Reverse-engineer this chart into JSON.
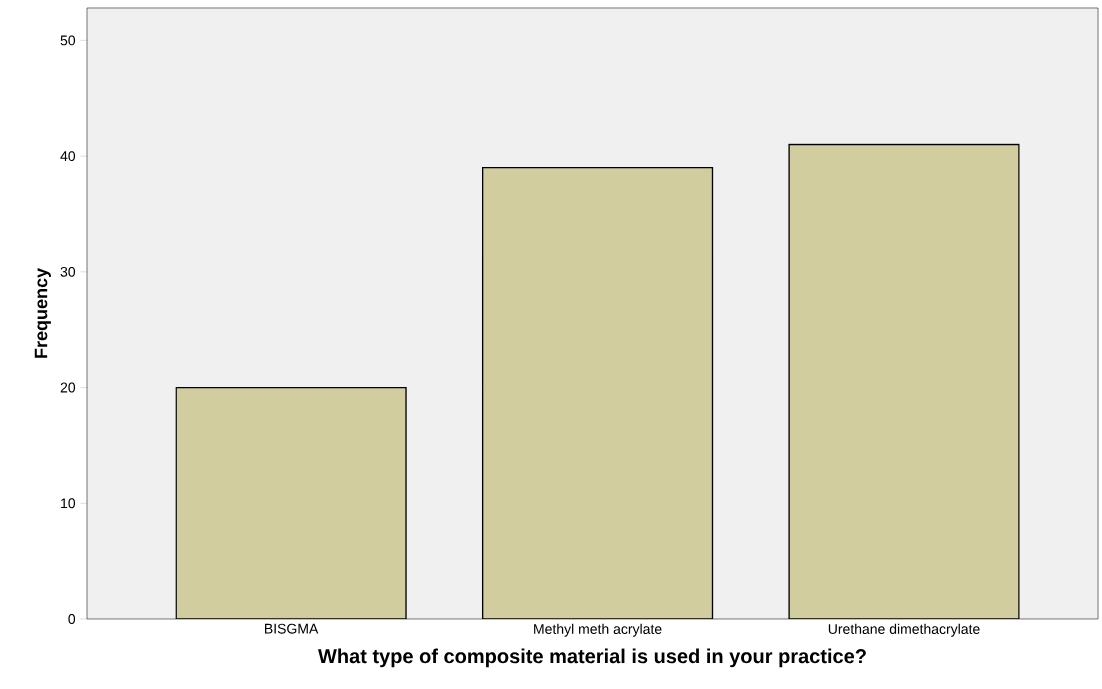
{
  "chart_data": {
    "type": "bar",
    "xlabel": "What type of composite material is used in your practice?",
    "ylabel": "Frequency",
    "categories": [
      "BISGMA",
      "Methyl meth acrylate",
      "Urethane dimethacrylate"
    ],
    "values": [
      20,
      39,
      41
    ],
    "color": "#d2cd9e",
    "ylim": [
      0,
      52.8
    ],
    "yticks": [
      0,
      10,
      20,
      30,
      40,
      50
    ]
  }
}
